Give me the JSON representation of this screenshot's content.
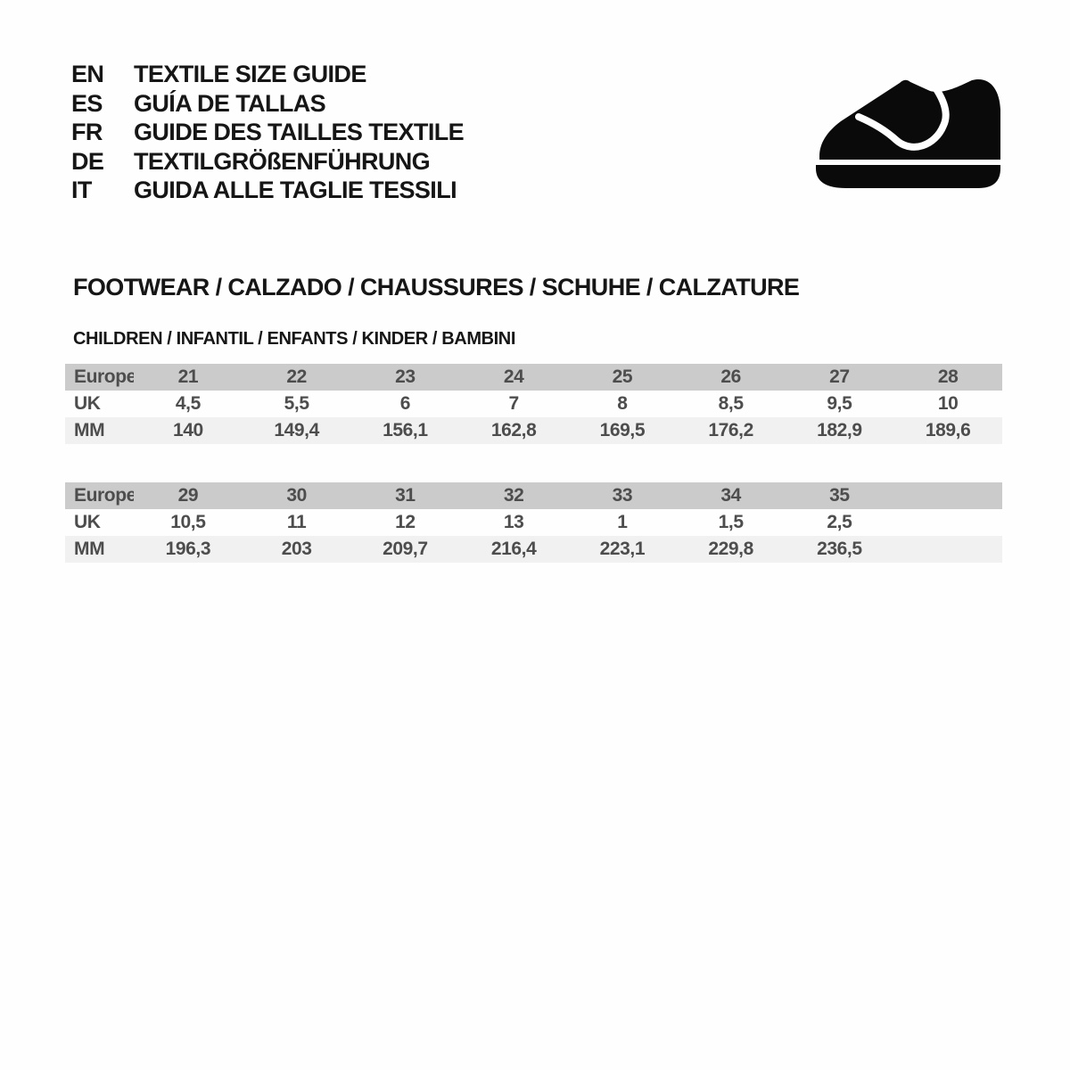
{
  "header": {
    "languages": [
      {
        "code": "EN",
        "label": "TEXTILE SIZE GUIDE"
      },
      {
        "code": "ES",
        "label": "GUÍA DE TALLAS"
      },
      {
        "code": "FR",
        "label": "GUIDE DES TAILLES TEXTILE"
      },
      {
        "code": "DE",
        "label": "TEXTILGRÖßENFÜHRUNG"
      },
      {
        "code": "IT",
        "label": "GUIDA ALLE TAGLIE TESSILI"
      }
    ],
    "icon": "children-shoe-icon"
  },
  "section": {
    "title": "FOOTWEAR / CALZADO / CHAUSSURES / SCHUHE / CALZATURE",
    "subtitle": "CHILDREN / INFANTIL / ENFANTS / KINDER / BAMBINI"
  },
  "tables": [
    {
      "name": "children-sizes-21-28",
      "rows": [
        [
          "Europe",
          "21",
          "22",
          "23",
          "24",
          "25",
          "26",
          "27",
          "28"
        ],
        [
          "UK",
          "4,5",
          "5,5",
          "6",
          "7",
          "8",
          "8,5",
          "9,5",
          "10"
        ],
        [
          "MM",
          "140",
          "149,4",
          "156,1",
          "162,8",
          "169,5",
          "176,2",
          "182,9",
          "189,6"
        ]
      ]
    },
    {
      "name": "children-sizes-29-35",
      "rows": [
        [
          "Europe",
          "29",
          "30",
          "31",
          "32",
          "33",
          "34",
          "35",
          ""
        ],
        [
          "UK",
          "10,5",
          "11",
          "12",
          "13",
          "1",
          "1,5",
          "2,5",
          ""
        ],
        [
          "MM",
          "196,3",
          "203",
          "209,7",
          "216,4",
          "223,1",
          "229,8",
          "236,5",
          ""
        ]
      ]
    }
  ],
  "colors": {
    "background": "#fefefe",
    "table_header_bg": "#cbcbcb",
    "table_zebra_bg": "#f1f1f1",
    "table_text": "#4d4d4d",
    "heading_text": "#161616",
    "icon": "#0a0a0a"
  }
}
